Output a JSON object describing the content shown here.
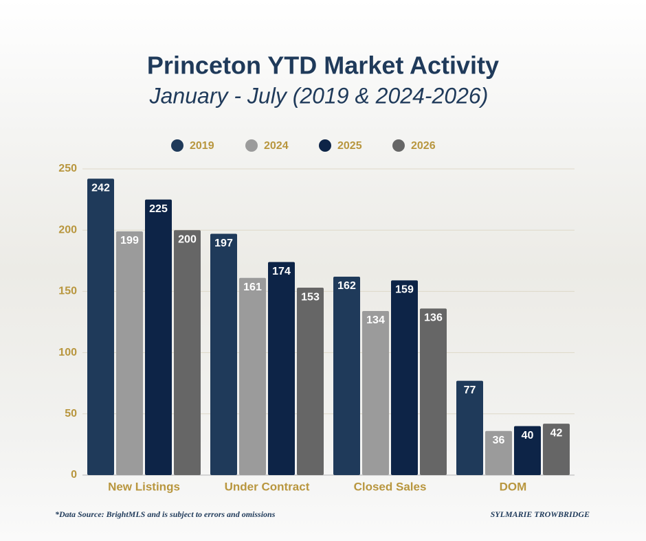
{
  "chart_data": {
    "type": "bar",
    "title": "Princeton YTD Market Activity",
    "subtitle": "January - July (2019 & 2024-2026)",
    "categories": [
      "New Listings",
      "Under Contract",
      "Closed Sales",
      "DOM"
    ],
    "series": [
      {
        "name": "2019",
        "color": "#1f3a5a",
        "values": [
          242,
          197,
          162,
          77
        ]
      },
      {
        "name": "2024",
        "color": "#9b9b9b",
        "values": [
          199,
          161,
          134,
          36
        ]
      },
      {
        "name": "2025",
        "color": "#0d2447",
        "values": [
          225,
          174,
          159,
          40
        ]
      },
      {
        "name": "2026",
        "color": "#666666",
        "values": [
          200,
          153,
          136,
          42
        ]
      }
    ],
    "ylim": [
      0,
      250
    ],
    "yticks": [
      0,
      50,
      100,
      150,
      200,
      250
    ],
    "grid": true,
    "legend": "top",
    "source": "*Data Source: BrightMLS and is subject to errors and omissions",
    "credit": "SYLMARIE TROWBRIDGE"
  }
}
